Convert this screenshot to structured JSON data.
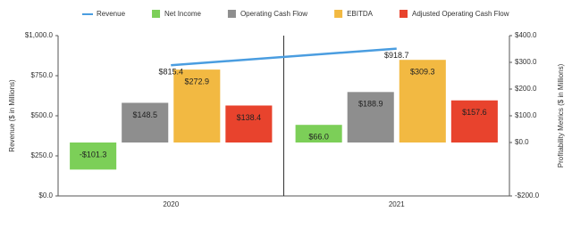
{
  "chart_data": {
    "type": "bar_line",
    "categories": [
      "2020",
      "2021"
    ],
    "ylabel": "Revenue ($ in Millions)",
    "y2label": "Profitability Metrics ($ in Millions)",
    "ylim": [
      0,
      1000
    ],
    "yticks": [
      {
        "value": 0,
        "label": "$0.0"
      },
      {
        "value": 250,
        "label": "$250.0"
      },
      {
        "value": 500,
        "label": "$500.0"
      },
      {
        "value": 750,
        "label": "$750.0"
      },
      {
        "value": 1000,
        "label": "$1,000.0"
      }
    ],
    "y2lim": [
      -200,
      400
    ],
    "y2ticks": [
      {
        "value": -200,
        "label": "-$200.0"
      },
      {
        "value": 0,
        "label": "$0.0"
      },
      {
        "value": 100,
        "label": "$100.0"
      },
      {
        "value": 200,
        "label": "$200.0"
      },
      {
        "value": 300,
        "label": "$300.0"
      },
      {
        "value": 400,
        "label": "$400.0"
      }
    ],
    "legend": "top",
    "series": [
      {
        "name": "Revenue",
        "type": "line",
        "color": "#4a9de0",
        "values": [
          815.4,
          918.7
        ],
        "value_labels": [
          "$815.4",
          "$918.7"
        ]
      },
      {
        "name": "Net Income",
        "type": "bar",
        "axis": "y2",
        "color": "#7ccf58",
        "values": [
          -101.3,
          66.0
        ],
        "value_labels": [
          "-$101.3",
          "$66.0"
        ]
      },
      {
        "name": "Operating Cash Flow",
        "type": "bar",
        "axis": "y2",
        "color": "#8e8e8e",
        "values": [
          148.5,
          188.9
        ],
        "value_labels": [
          "$148.5",
          "$188.9"
        ]
      },
      {
        "name": "EBITDA",
        "type": "bar",
        "axis": "y2",
        "color": "#f2b942",
        "values": [
          272.9,
          309.3
        ],
        "value_labels": [
          "$272.9",
          "$309.3"
        ]
      },
      {
        "name": "Adjusted Operating Cash Flow",
        "type": "bar",
        "axis": "y2",
        "color": "#e8432d",
        "values": [
          138.4,
          157.6
        ],
        "value_labels": [
          "$138.4",
          "$157.6"
        ]
      }
    ]
  }
}
